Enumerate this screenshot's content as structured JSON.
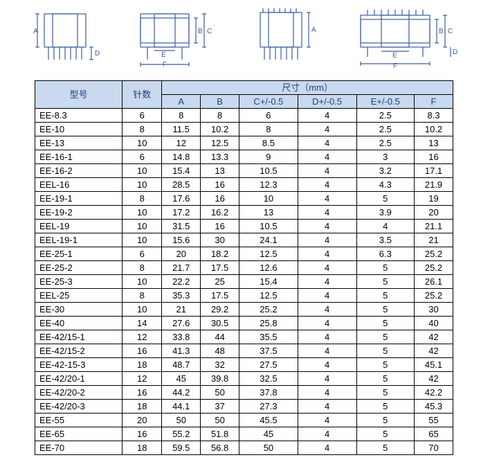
{
  "diagrams": {
    "labels": [
      "A",
      "B",
      "C",
      "D",
      "E",
      "F"
    ]
  },
  "table": {
    "header": {
      "model": "型号",
      "pins": "针数",
      "dim_group": "尺寸（mm）",
      "cols": [
        "A",
        "B",
        "C+/-0.5",
        "D+/-0.5",
        "E+/-0.5",
        "F"
      ]
    },
    "col_widths": [
      "80",
      "50",
      "70",
      "70",
      "80",
      "80",
      "80",
      "70"
    ],
    "rows": [
      [
        "EE-8.3",
        "6",
        "8",
        "8",
        "6",
        "4",
        "2.5",
        "8.3"
      ],
      [
        "EE-10",
        "8",
        "11.5",
        "10.2",
        "8",
        "4",
        "2.5",
        "10.2"
      ],
      [
        "EE-13",
        "10",
        "12",
        "12.5",
        "8.5",
        "4",
        "2.5",
        "13"
      ],
      [
        "EE-16-1",
        "6",
        "14.8",
        "13.3",
        "9",
        "4",
        "3",
        "16"
      ],
      [
        "EE-16-2",
        "10",
        "15.4",
        "13",
        "10.5",
        "4",
        "3.2",
        "17.1"
      ],
      [
        "EEL-16",
        "10",
        "28.5",
        "16",
        "12.3",
        "4",
        "4.3",
        "21.9"
      ],
      [
        "EE-19-1",
        "8",
        "17.6",
        "16",
        "10",
        "4",
        "5",
        "19"
      ],
      [
        "EE-19-2",
        "10",
        "17.2",
        "16.2",
        "13",
        "4",
        "3.9",
        "20"
      ],
      [
        "EEL-19",
        "10",
        "31.5",
        "16",
        "10.5",
        "4",
        "4",
        "21.1"
      ],
      [
        "EEL-19-1",
        "10",
        "15.6",
        "30",
        "24.1",
        "4",
        "3.5",
        "21"
      ],
      [
        "EE-25-1",
        "6",
        "20",
        "18.2",
        "12.5",
        "4",
        "6.3",
        "25.2"
      ],
      [
        "EE-25-2",
        "8",
        "21.7",
        "17.5",
        "12.6",
        "4",
        "5",
        "25.2"
      ],
      [
        "EE-25-3",
        "10",
        "22.2",
        "25",
        "15.4",
        "4",
        "5",
        "26.1"
      ],
      [
        "EEL-25",
        "8",
        "35.3",
        "17.5",
        "12.5",
        "4",
        "5",
        "25.2"
      ],
      [
        "EE-30",
        "10",
        "21",
        "29.2",
        "25.2",
        "4",
        "5",
        "30"
      ],
      [
        "EE-40",
        "14",
        "27.6",
        "30.5",
        "25.8",
        "4",
        "5",
        "40"
      ],
      [
        "EE-42/15-1",
        "12",
        "33.8",
        "44",
        "35.5",
        "4",
        "5",
        "42"
      ],
      [
        "EE-42/15-2",
        "16",
        "41.3",
        "48",
        "37.5",
        "4",
        "5",
        "42"
      ],
      [
        "EE-42-15-3",
        "18",
        "48.7",
        "32",
        "27.5",
        "4",
        "5",
        "45.1"
      ],
      [
        "EE-42/20-1",
        "12",
        "45",
        "39.8",
        "32.5",
        "4",
        "5",
        "42"
      ],
      [
        "EE-42/20-2",
        "16",
        "44.2",
        "50",
        "37.8",
        "4",
        "5",
        "42.2"
      ],
      [
        "EE-42/20-3",
        "18",
        "44.1",
        "37",
        "27.3",
        "4",
        "5",
        "45.3"
      ],
      [
        "EE-55",
        "20",
        "50",
        "50",
        "45.5",
        "4",
        "5",
        "55"
      ],
      [
        "EE-65",
        "16",
        "55.2",
        "51.8",
        "45",
        "4",
        "5",
        "65"
      ],
      [
        "EE-70",
        "18",
        "59.5",
        "56.8",
        "50",
        "4",
        "5",
        "70"
      ]
    ]
  },
  "colors": {
    "header_bg": "#c9d9ef",
    "header_text": "#204080",
    "border": "#000000",
    "stroke": "#3a5aa0"
  }
}
